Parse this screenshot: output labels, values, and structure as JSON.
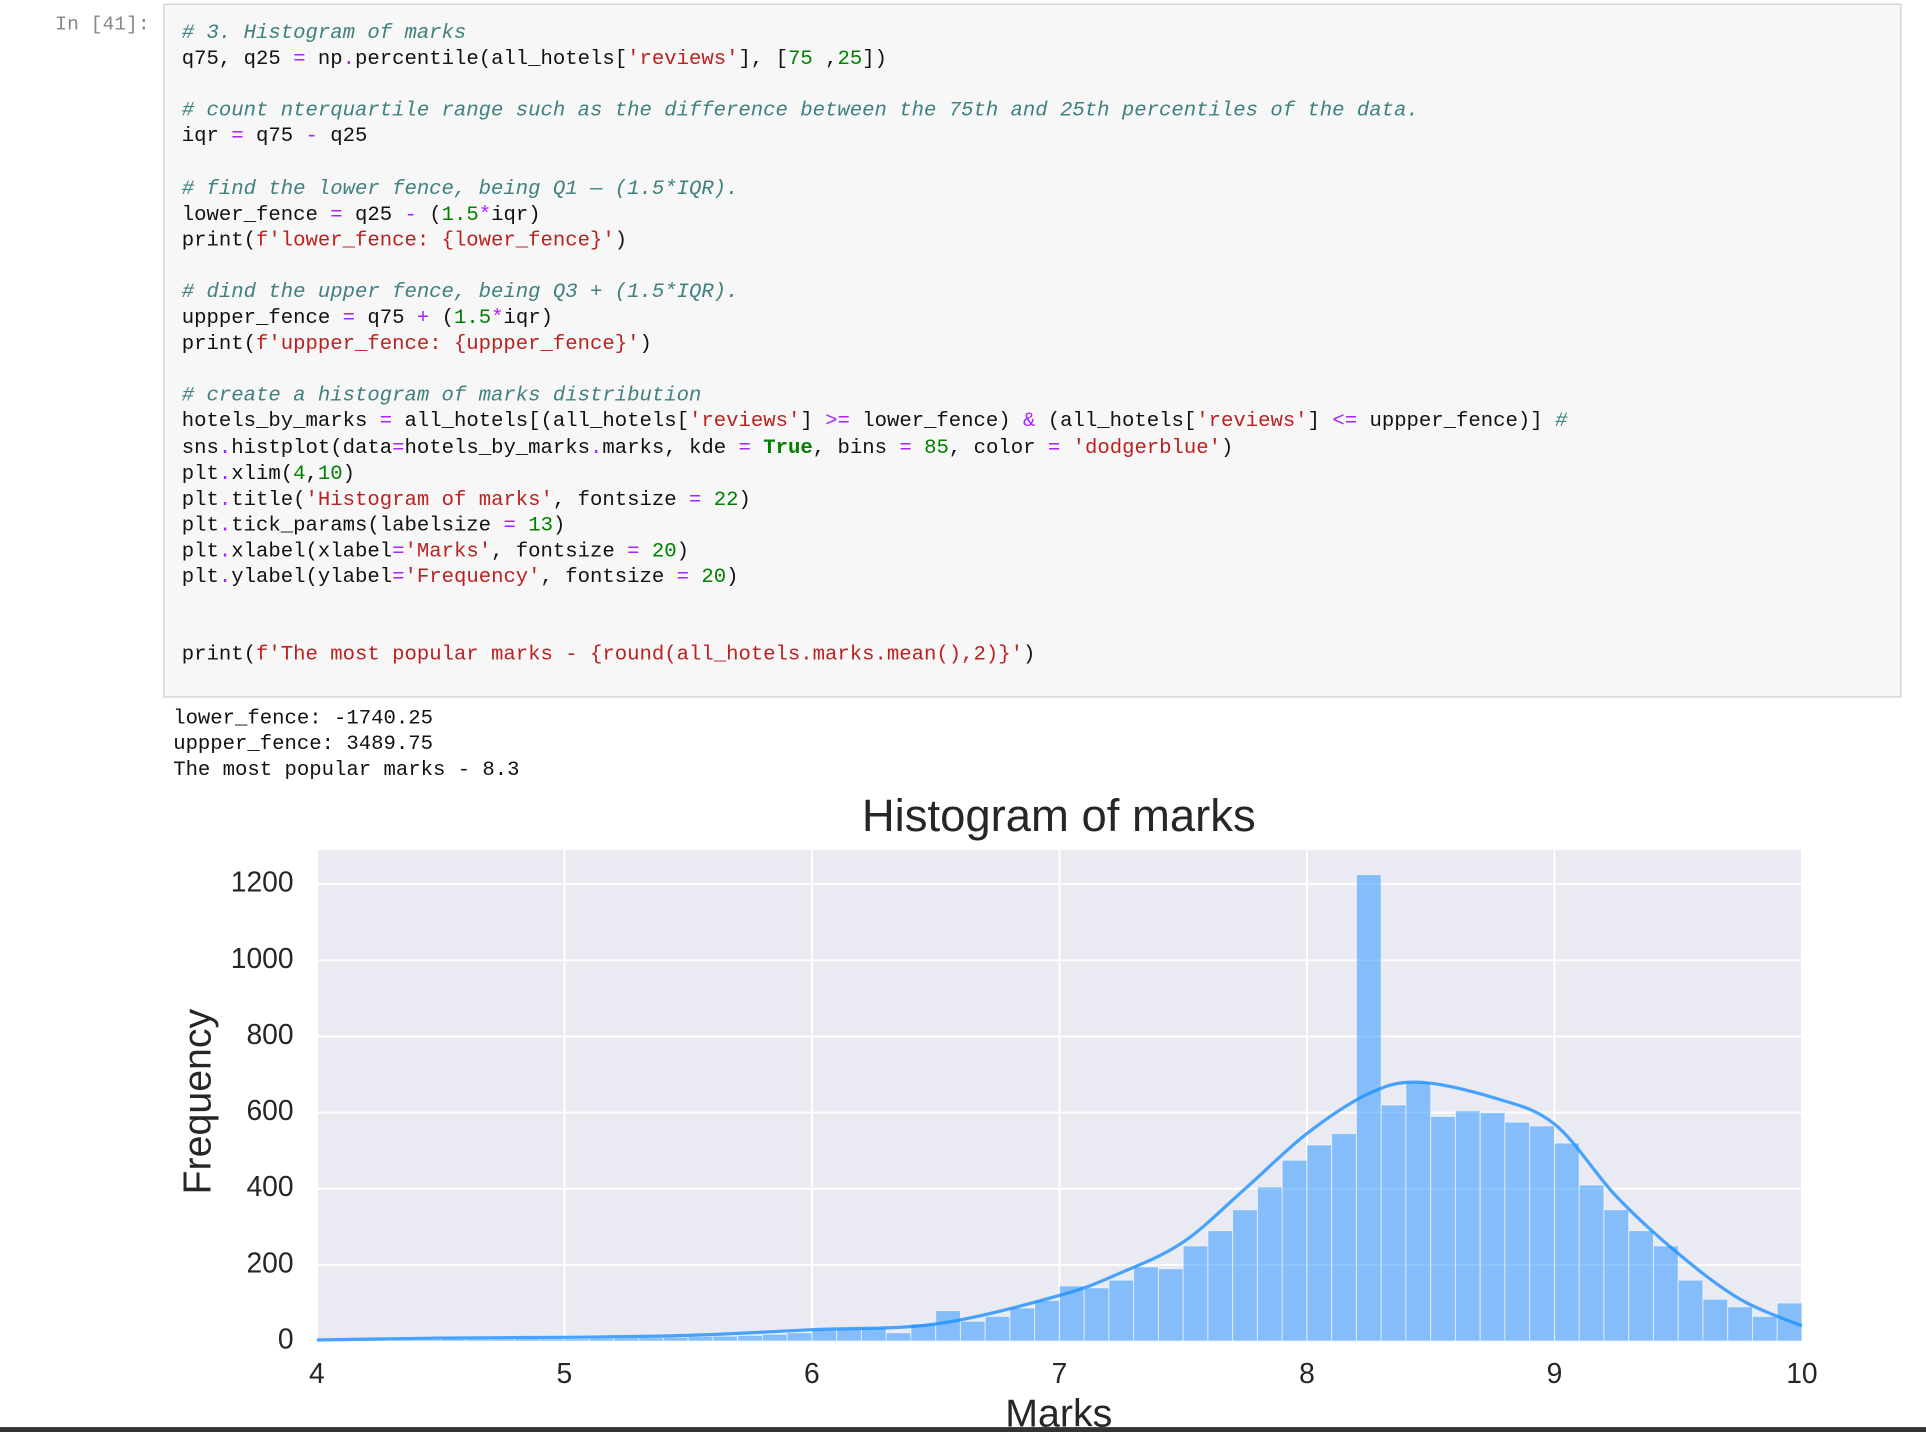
{
  "cell": {
    "prompt": "In [41]:",
    "code": "# 3. Histogram of marks\nq75, q25 = np.percentile(all_hotels['reviews'], [75 ,25])\n\n# count nterquartile range such as the difference between the 75th and 25th percentiles of the data.\niqr = q75 - q25\n\n# find the lower fence, being Q1 — (1.5*IQR).\nlower_fence = q25 - (1.5*iqr)\nprint(f'lower_fence: {lower_fence}')\n\n# dind the upper fence, being Q3 + (1.5*IQR).\nuppper_fence = q75 + (1.5*iqr)\nprint(f'uppper_fence: {uppper_fence}')\n\n# create a histogram of marks distribution\nhotels_by_marks = all_hotels[(all_hotels['reviews'] >= lower_fence) & (all_hotels['reviews'] <= uppper_fence)] #\nsns.histplot(data=hotels_by_marks.marks, kde = True, bins = 85, color = 'dodgerblue')\nplt.xlim(4,10)\nplt.title('Histogram of marks', fontsize = 22)\nplt.tick_params(labelsize = 13)\nplt.xlabel(xlabel='Marks', fontsize = 20)\nplt.ylabel(ylabel='Frequency', fontsize = 20)\n\n\nprint(f'The most popular marks - {round(all_hotels.marks.mean(),2)}')",
    "output": [
      "lower_fence: -1740.25",
      "uppper_fence: 3489.75",
      "The most popular marks - 8.3"
    ]
  },
  "chart_data": {
    "type": "histogram",
    "title": "Histogram of marks",
    "xlabel": "Marks",
    "ylabel": "Frequency",
    "bins": [
      4,
      4.1,
      4.2,
      4.3,
      4.4,
      4.5,
      4.6,
      4.7,
      4.8,
      4.9,
      5,
      5.1,
      5.2,
      5.3,
      5.4,
      5.5,
      5.6,
      5.7,
      5.8,
      5.9,
      6,
      6.1,
      6.2,
      6.3,
      6.4,
      6.5,
      6.6,
      6.7,
      6.8,
      6.9,
      7,
      7.1,
      7.2,
      7.3,
      7.4,
      7.5,
      7.6,
      7.7,
      7.8,
      7.9,
      8,
      8.1,
      8.2,
      8.3,
      8.4,
      8.5,
      8.6,
      8.7,
      8.8,
      8.9,
      9,
      9.1,
      9.2,
      9.3,
      9.4,
      9.5,
      9.6,
      9.7,
      9.8,
      9.9,
      10
    ],
    "values": [
      2,
      3,
      3,
      4,
      4,
      5,
      5,
      5,
      6,
      6,
      6,
      7,
      8,
      9,
      10,
      12,
      13,
      15,
      18,
      22,
      30,
      32,
      35,
      22,
      45,
      80,
      52,
      65,
      87,
      107,
      145,
      140,
      160,
      195,
      190,
      250,
      290,
      345,
      405,
      475,
      515,
      545,
      1225,
      620,
      680,
      590,
      605,
      600,
      575,
      565,
      520,
      410,
      345,
      290,
      250,
      160,
      110,
      90,
      65,
      100
    ],
    "color": "#1e90ff",
    "kde": {
      "x": [
        4,
        4.5,
        5,
        5.5,
        6,
        6.5,
        7,
        7.25,
        7.5,
        7.75,
        8,
        8.25,
        8.45,
        8.75,
        9,
        9.25,
        9.5,
        9.75,
        10
      ],
      "values": [
        3,
        8,
        10,
        15,
        30,
        45,
        120,
        180,
        260,
        400,
        545,
        650,
        680,
        640,
        570,
        380,
        230,
        110,
        40
      ]
    },
    "xlim": [
      4,
      10
    ],
    "xticks": [
      4,
      5,
      6,
      7,
      8,
      9,
      10
    ],
    "ylim": [
      0,
      1290
    ],
    "yticks": [
      0,
      200,
      400,
      600,
      800,
      1000,
      1200
    ],
    "grid": true
  }
}
